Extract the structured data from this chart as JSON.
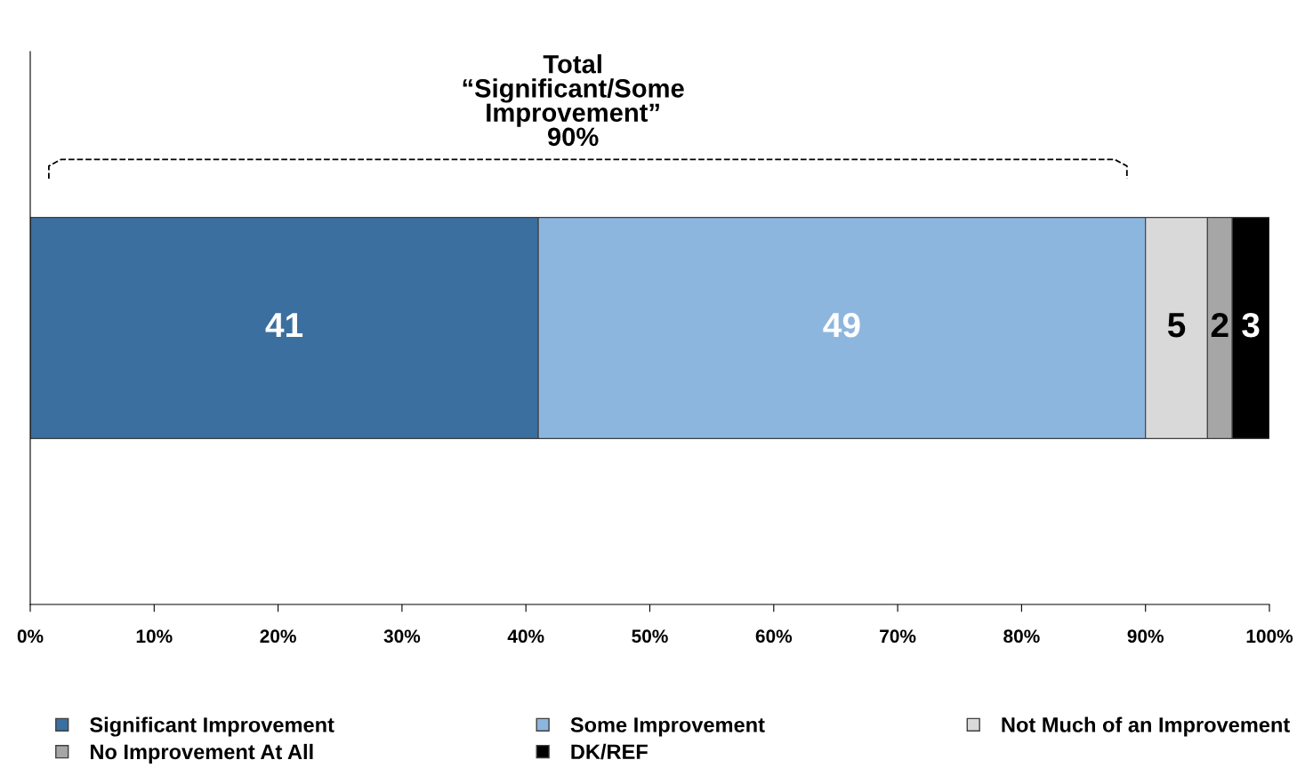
{
  "chart_data": {
    "type": "bar",
    "orientation": "horizontal",
    "stacked": true,
    "categories": [
      null
    ],
    "series": [
      {
        "name": "Significant Improvement",
        "color": "#3a6f9f",
        "values": [
          41
        ]
      },
      {
        "name": "Some Improvement",
        "color": "#8db6de",
        "values": [
          49
        ]
      },
      {
        "name": "Not Much of an Improvement",
        "color": "#d9d9d9",
        "values": [
          5
        ]
      },
      {
        "name": "No Improvement At All",
        "color": "#a6a6a6",
        "values": [
          2
        ]
      },
      {
        "name": "DK/REF",
        "color": "#000000",
        "values": [
          3
        ]
      }
    ],
    "xlim": [
      0,
      100
    ],
    "xticks": [
      {
        "value": 0,
        "label": "0%"
      },
      {
        "value": 10,
        "label": "10%"
      },
      {
        "value": 20,
        "label": "20%"
      },
      {
        "value": 30,
        "label": "30%"
      },
      {
        "value": 40,
        "label": "40%"
      },
      {
        "value": 50,
        "label": "50%"
      },
      {
        "value": 60,
        "label": "60%"
      },
      {
        "value": 70,
        "label": "70%"
      },
      {
        "value": 80,
        "label": "80%"
      },
      {
        "value": 90,
        "label": "90%"
      },
      {
        "value": 100,
        "label": "100%"
      }
    ],
    "annotations": [
      "Total\n“Significant/Some\nImprovement”\n90%"
    ],
    "data_labels": true,
    "tick_labels": "x",
    "grid": false,
    "legend": "bottom"
  }
}
